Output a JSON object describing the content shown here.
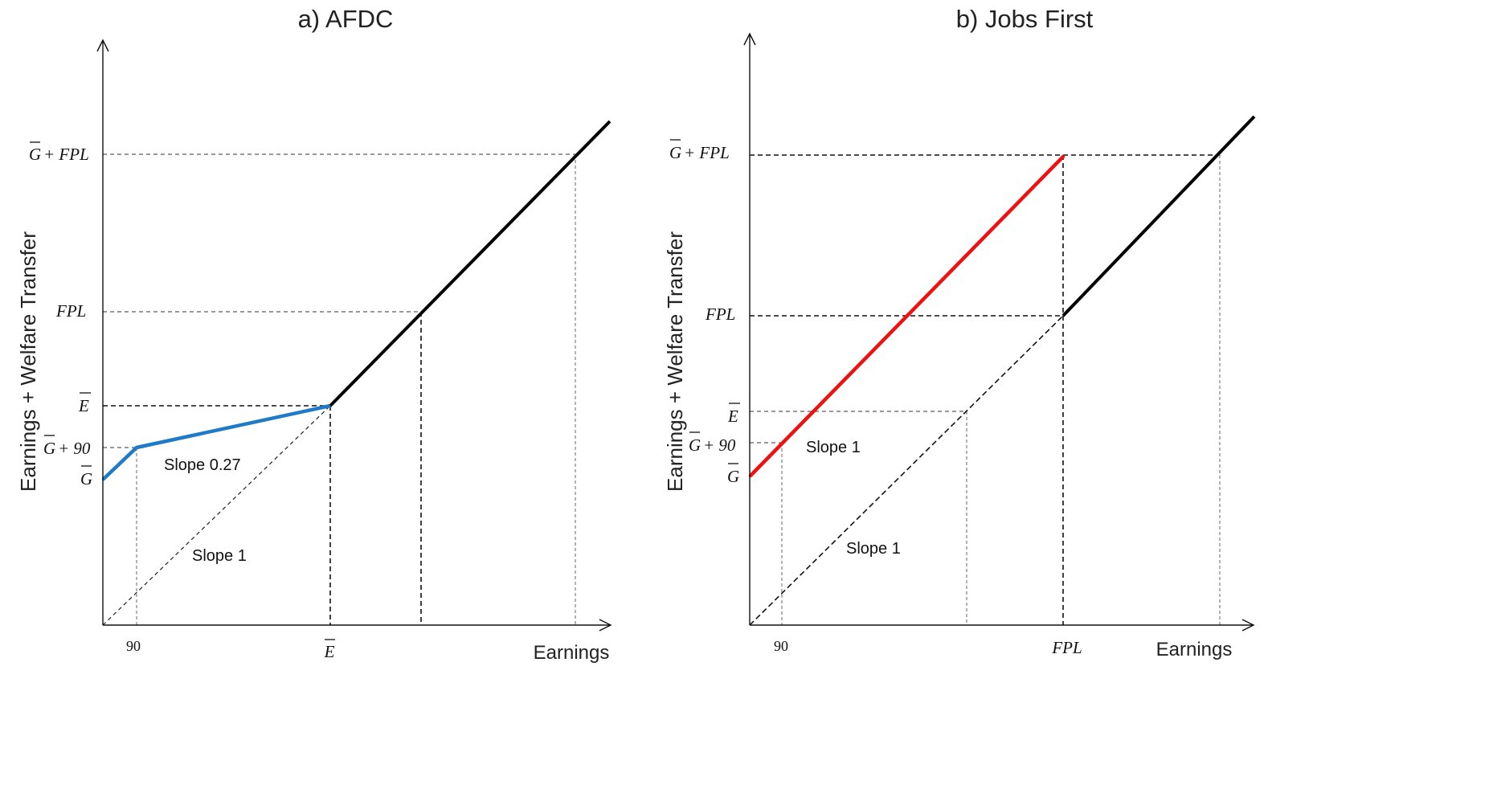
{
  "colors": {
    "afdc_line": "#1f7ac7",
    "jobs_first_line": "#ee1111",
    "common_line": "#000000"
  },
  "panel_a": {
    "title": "a) AFDC",
    "ylabel": "Earnings + Welfare Transfer",
    "xlabel": "Earnings",
    "x_ticks": {
      "ninety": "90",
      "e_bar": "E"
    },
    "y_ticks": {
      "g_plus_fpl_g": "G",
      "g_plus_fpl_rest": "+ FPL",
      "fpl": "FPL",
      "e_bar": "E",
      "g_plus_90_g": "G",
      "g_plus_90_rest": "+ 90",
      "g_bar": "G"
    },
    "annotations": {
      "slope_027": "Slope 0.27",
      "slope_1": "Slope 1"
    }
  },
  "panel_b": {
    "title": "b) Jobs First",
    "ylabel": "Earnings + Welfare Transfer",
    "xlabel": "Earnings",
    "x_ticks": {
      "ninety": "90",
      "fpl": "FPL"
    },
    "y_ticks": {
      "g_plus_fpl_g": "G",
      "g_plus_fpl_rest": "+ FPL",
      "fpl": "FPL",
      "e_bar": "E",
      "g_plus_90_g": "G",
      "g_plus_90_rest": "+ 90",
      "g_bar": "G"
    },
    "annotations": {
      "slope_1_upper": "Slope 1",
      "slope_1_lower": "Slope 1"
    }
  }
}
